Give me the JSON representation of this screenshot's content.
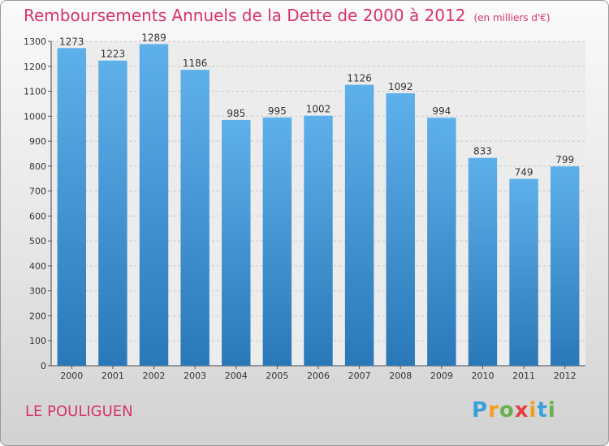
{
  "title": "Remboursements Annuels de la Dette de 2000 à 2012",
  "unit": "(en milliers d'€)",
  "location": "LE POULIGUEN",
  "logo": {
    "letters": [
      "P",
      "r",
      "o",
      "x",
      "i",
      "t",
      "i"
    ],
    "colors": [
      "#3aa0d8",
      "#f0a020",
      "#6ab04c",
      "#e2403c",
      "#f0a020",
      "#3aa0d8",
      "#6ab04c"
    ]
  },
  "colors": {
    "title": "#d6336c",
    "bar_top": "#5eb0ea",
    "bar_bottom": "#2a78b8"
  },
  "chart_data": {
    "type": "bar",
    "categories": [
      "2000",
      "2001",
      "2002",
      "2003",
      "2004",
      "2005",
      "2006",
      "2007",
      "2008",
      "2009",
      "2010",
      "2011",
      "2012"
    ],
    "values": [
      1273,
      1223,
      1289,
      1186,
      985,
      995,
      1002,
      1126,
      1092,
      994,
      833,
      749,
      799
    ],
    "ylim": [
      0,
      1300
    ],
    "yticks": [
      0,
      100,
      200,
      300,
      400,
      500,
      600,
      700,
      800,
      900,
      1000,
      1100,
      1200,
      1300
    ],
    "grid": true
  }
}
